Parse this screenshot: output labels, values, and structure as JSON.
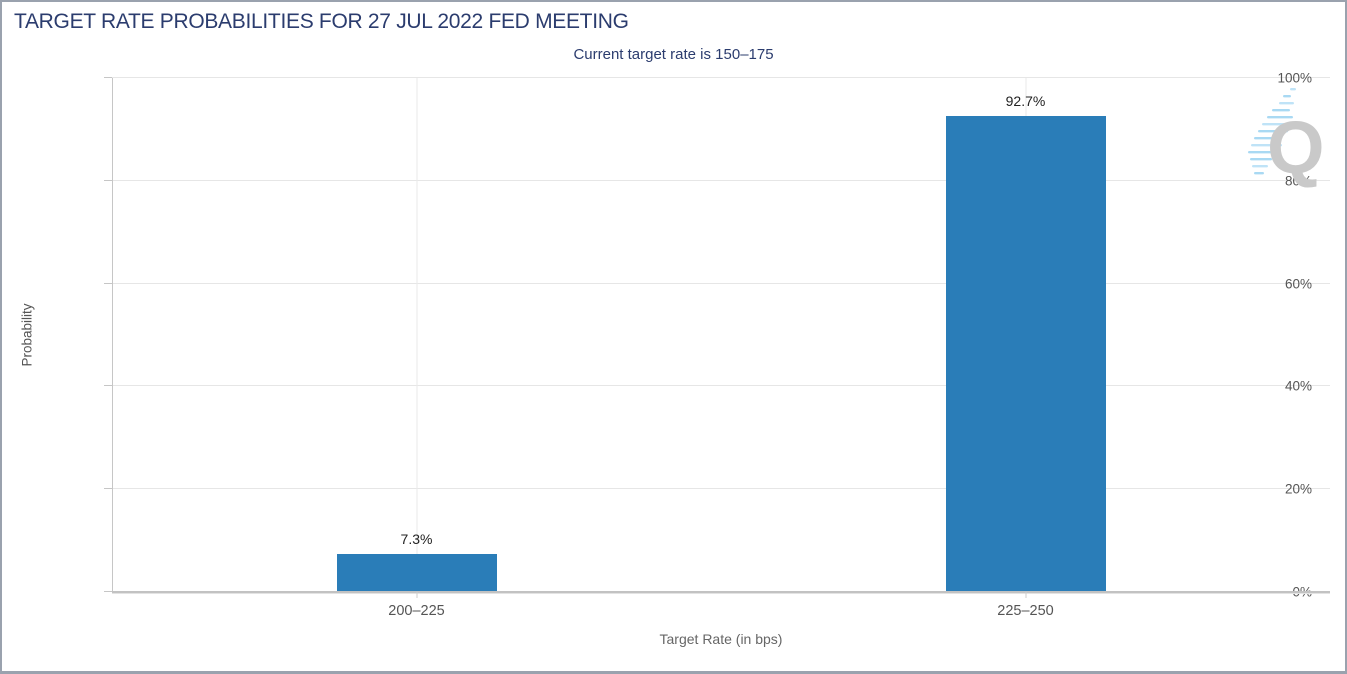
{
  "header": {
    "title": "TARGET RATE PROBABILITIES FOR 27 JUL 2022 FED MEETING",
    "subtitle": "Current target rate is 150–175"
  },
  "chart_data": {
    "type": "bar",
    "title": "TARGET RATE PROBABILITIES FOR 27 JUL 2022 FED MEETING",
    "subtitle": "Current target rate is 150–175",
    "categories": [
      "200–225",
      "225–250"
    ],
    "values": [
      7.3,
      92.7
    ],
    "value_labels": [
      "7.3%",
      "92.7%"
    ],
    "xlabel": "Target Rate (in bps)",
    "ylabel": "Probability",
    "ylim": [
      0,
      100
    ],
    "yticks": [
      0,
      20,
      40,
      60,
      80,
      100
    ],
    "ytick_labels": [
      "0%",
      "20%",
      "40%",
      "60%",
      "80%",
      "100%"
    ],
    "grid": true,
    "legend": "none",
    "bar_color": "#2a7db8"
  },
  "colors": {
    "title_navy": "#2b3c6e",
    "bar_blue": "#2a7db8",
    "axis_text": "#555555",
    "gridline": "#e6e6e6",
    "frame_border": "#9aa2ae",
    "logo_gray": "#c9c9c9",
    "logo_blue": "#a9d9f3"
  },
  "branding": {
    "logo_letter": "Q"
  }
}
